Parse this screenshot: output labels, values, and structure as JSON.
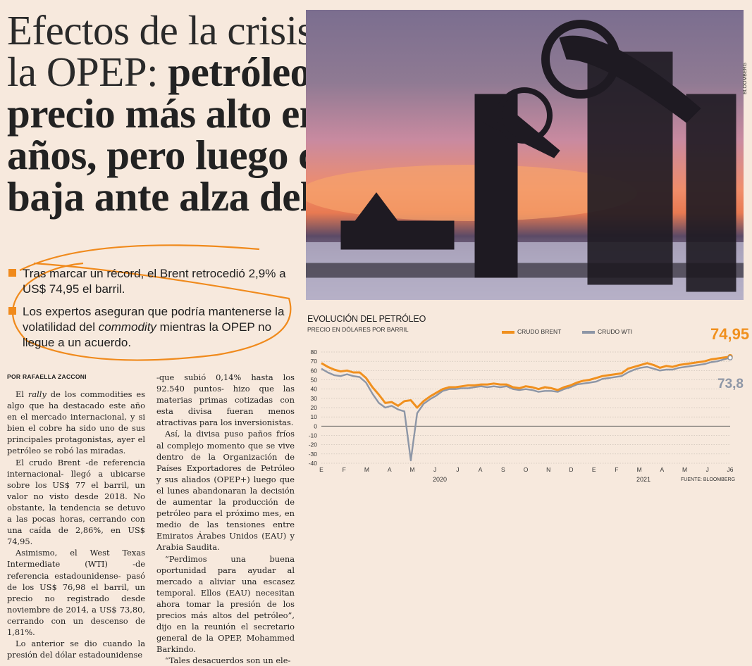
{
  "headline": {
    "light": "Efectos de la crisis dentro de la OPEP:",
    "bold": "petróleo llega a su precio más alto en tres años, pero luego cierra a la baja ante alza del dólar"
  },
  "photo_credit": "BLOOMBERG",
  "highlights": [
    {
      "text": "Tras marcar un récord, el Brent retrocedió 2,9% a US$ 74,95 el barril."
    },
    {
      "before": "Los expertos aseguran que podría mantenerse la volatilidad del ",
      "em": "commodity",
      "after": " mientras la OPEP no llegue a un acuerdo."
    }
  ],
  "byline": "POR RAFAELLA ZACCONI",
  "article": {
    "p1_before": "El ",
    "p1_em": "rally",
    "p1_after": " de los commodities es algo que ha destacado este año en el mercado internacional, y si bien el cobre ha sido uno de sus principales protagonistas, ayer el petróleo se robó las miradas.",
    "p2": "El crudo Brent -de referencia internacional- llegó a ubicarse sobre los US$ 77 el barril, un valor no visto desde 2018. No obstante, la tendencia se detuvo a las pocas horas, cerrando con una caída de 2,86%, en US$ 74,95.",
    "p3": "Asimismo, el West Texas Intermediate (WTI) -de referencia estadounidense- pasó de los US$ 76,98 el barril, un precio no registrado desde noviembre de 2014, a US$ 73,80, cerrando con un descenso de 1,81%.",
    "p4": "Lo anterior se dio cuando la presión del dólar estadounidense",
    "p5": "-que subió 0,14% hasta los 92.540 puntos- hizo que las materias primas cotizadas con esta divisa fueran menos atractivas para los inversionistas.",
    "p6": "Así, la divisa puso paños fríos al complejo momento que se vive dentro de la Organización de Países Exportadores de Petróleo y sus aliados (OPEP+) luego que el lunes abandonaran la decisión de aumentar la producción de petróleo para el próximo mes, en medio de las tensiones entre Emiratos Árabes Unidos (EAU) y Arabia Saudita.",
    "p7": "“Perdimos una buena oportunidad para ayudar al mercado a aliviar una escasez temporal. Ellos (EAU) necesitan ahora tomar la presión de los precios más altos del petróleo”, dijo en la reunión el secretario general de la OPEP, Mohammed Barkindo.",
    "p8": "“Tales desacuerdos son un ele-"
  },
  "chart_data": {
    "type": "line",
    "title": "EVOLUCIÓN DEL PETRÓLEO",
    "subtitle": "PRECIO EN DÓLARES POR BARRIL",
    "source": "FUENTE: BLOOMBERG",
    "ylim": [
      -40,
      80
    ],
    "yticks": [
      80,
      70,
      60,
      50,
      40,
      30,
      20,
      10,
      0,
      -10,
      -20,
      -30,
      -40
    ],
    "month_labels": [
      "E",
      "F",
      "M",
      "A",
      "M",
      "J",
      "J",
      "A",
      "S",
      "O",
      "N",
      "D",
      "E",
      "F",
      "M",
      "A",
      "M",
      "J",
      "J6"
    ],
    "years": [
      "2020",
      "2021"
    ],
    "end_labels": {
      "brent": "74,95",
      "wti": "73,8"
    },
    "colors": {
      "brent": "#f0901e",
      "wti": "#8d96a6"
    },
    "series": [
      {
        "name": "CRUDO BRENT",
        "values": [
          68,
          64,
          61,
          59,
          60,
          58,
          58,
          52,
          42,
          34,
          25,
          26,
          22,
          27,
          28,
          20,
          27,
          32,
          36,
          40,
          42,
          42,
          43,
          44,
          44,
          45,
          45,
          46,
          45,
          45,
          42,
          41,
          43,
          42,
          40,
          42,
          41,
          39,
          42,
          44,
          47,
          49,
          50,
          52,
          54,
          55,
          56,
          57,
          62,
          64,
          66,
          68,
          66,
          63,
          65,
          64,
          66,
          67,
          68,
          69,
          70,
          72,
          73,
          74,
          74.95
        ]
      },
      {
        "name": "CRUDO WTI",
        "values": [
          62,
          58,
          55,
          54,
          56,
          54,
          53,
          47,
          35,
          25,
          20,
          22,
          18,
          16,
          -37,
          14,
          24,
          29,
          33,
          38,
          40,
          40,
          41,
          41,
          42,
          43,
          42,
          43,
          42,
          43,
          40,
          39,
          40,
          39,
          37,
          38,
          38,
          37,
          40,
          42,
          45,
          46,
          47,
          48,
          51,
          52,
          53,
          54,
          58,
          61,
          63,
          64,
          62,
          60,
          61,
          61,
          63,
          64,
          65,
          66,
          67,
          69,
          70,
          72,
          73.8
        ]
      }
    ]
  }
}
